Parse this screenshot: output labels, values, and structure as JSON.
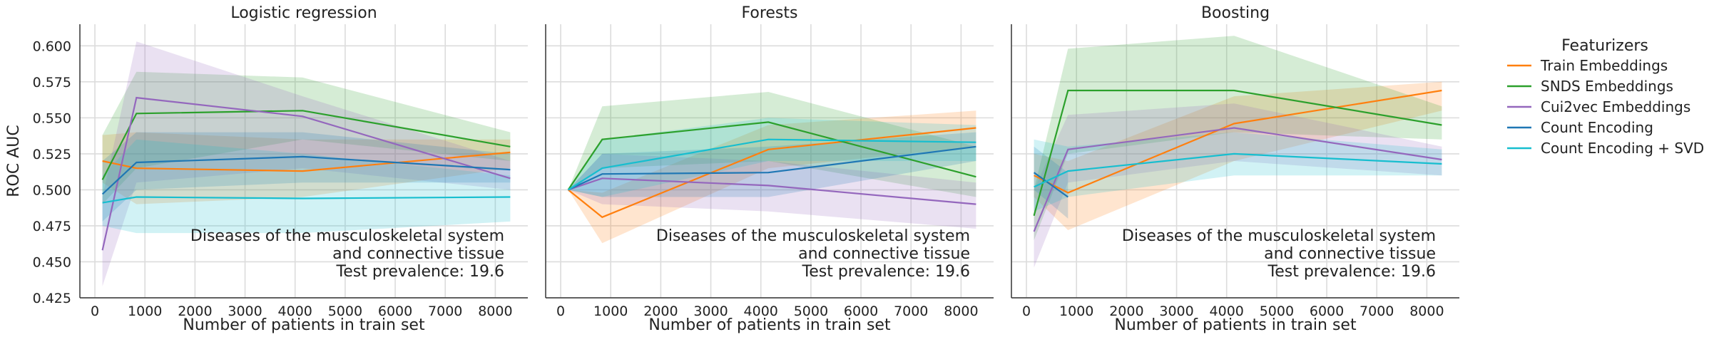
{
  "chart_data": {
    "type": "line",
    "ylabel": "ROC AUC",
    "xlabel": "Number of patients in train set",
    "xlim": [
      -300,
      8650
    ],
    "ylim": [
      0.425,
      0.615
    ],
    "xticks": [
      0,
      1000,
      2000,
      3000,
      4000,
      5000,
      6000,
      7000,
      8000
    ],
    "yticks": [
      0.425,
      0.45,
      0.475,
      0.5,
      0.525,
      0.55,
      0.575,
      0.6
    ],
    "ytick_labels": [
      "0.425",
      "0.450",
      "0.475",
      "0.500",
      "0.525",
      "0.550",
      "0.575",
      "0.600"
    ],
    "grid": true,
    "annotation": [
      "Diseases of the musculoskeletal system",
      "and connective tissue",
      "Test prevalence: 19.6"
    ],
    "legend": {
      "title": "Featurizers",
      "placement": "right",
      "entries": [
        "Train Embeddings",
        "SNDS Embeddings",
        "Cui2vec Embeddings",
        "Count Encoding",
        "Count Encoding + SVD"
      ]
    },
    "colors": {
      "Train Embeddings": "#ff7f0e",
      "SNDS Embeddings": "#2ca02c",
      "Cui2vec Embeddings": "#9467bd",
      "Count Encoding": "#1f77b4",
      "Count Encoding + SVD": "#17becf"
    },
    "panels": [
      {
        "title": "Logistic regression",
        "series": [
          {
            "name": "Train Embeddings",
            "x": [
              150,
              830,
              4150,
              8300
            ],
            "y": [
              0.52,
              0.515,
              0.513,
              0.526
            ],
            "lo": [
              0.505,
              0.49,
              0.495,
              0.515
            ],
            "hi": [
              0.538,
              0.54,
              0.535,
              0.535
            ]
          },
          {
            "name": "SNDS Embeddings",
            "x": [
              150,
              830,
              4150,
              8300
            ],
            "y": [
              0.507,
              0.553,
              0.555,
              0.53
            ],
            "lo": [
              0.49,
              0.515,
              0.535,
              0.52
            ],
            "hi": [
              0.538,
              0.582,
              0.578,
              0.54
            ]
          },
          {
            "name": "Cui2vec Embeddings",
            "x": [
              150,
              830,
              4150,
              8300
            ],
            "y": [
              0.458,
              0.564,
              0.551,
              0.508
            ],
            "lo": [
              0.433,
              0.505,
              0.515,
              0.5
            ],
            "hi": [
              0.495,
              0.603,
              0.565,
              0.52
            ]
          },
          {
            "name": "Count Encoding",
            "x": [
              150,
              830,
              4150,
              8300
            ],
            "y": [
              0.497,
              0.519,
              0.523,
              0.514
            ],
            "lo": [
              0.478,
              0.5,
              0.505,
              0.505
            ],
            "hi": [
              0.52,
              0.54,
              0.54,
              0.525
            ]
          },
          {
            "name": "Count Encoding + SVD",
            "x": [
              150,
              830,
              4150,
              8300
            ],
            "y": [
              0.491,
              0.495,
              0.494,
              0.495
            ],
            "lo": [
              0.475,
              0.47,
              0.47,
              0.478
            ],
            "hi": [
              0.51,
              0.535,
              0.525,
              0.51
            ]
          }
        ]
      },
      {
        "title": "Forests",
        "series": [
          {
            "name": "Train Embeddings",
            "x": [
              150,
              830,
              4150,
              8300
            ],
            "y": [
              0.5,
              0.481,
              0.528,
              0.543
            ],
            "lo": [
              0.5,
              0.463,
              0.515,
              0.53
            ],
            "hi": [
              0.5,
              0.498,
              0.545,
              0.555
            ]
          },
          {
            "name": "SNDS Embeddings",
            "x": [
              150,
              830,
              4150,
              8300
            ],
            "y": [
              0.5,
              0.535,
              0.547,
              0.509
            ],
            "lo": [
              0.5,
              0.515,
              0.52,
              0.495
            ],
            "hi": [
              0.5,
              0.558,
              0.568,
              0.53
            ]
          },
          {
            "name": "Cui2vec Embeddings",
            "x": [
              150,
              830,
              4150,
              8300
            ],
            "y": [
              0.5,
              0.508,
              0.503,
              0.49
            ],
            "lo": [
              0.5,
              0.49,
              0.485,
              0.473
            ],
            "hi": [
              0.5,
              0.525,
              0.52,
              0.505
            ]
          },
          {
            "name": "Count Encoding",
            "x": [
              150,
              830,
              4150,
              8300
            ],
            "y": [
              0.5,
              0.511,
              0.512,
              0.53
            ],
            "lo": [
              0.5,
              0.495,
              0.495,
              0.52
            ],
            "hi": [
              0.5,
              0.525,
              0.53,
              0.54
            ]
          },
          {
            "name": "Count Encoding + SVD",
            "x": [
              150,
              830,
              4150,
              8300
            ],
            "y": [
              0.5,
              0.515,
              0.535,
              0.533
            ],
            "lo": [
              0.5,
              0.495,
              0.52,
              0.52
            ],
            "hi": [
              0.5,
              0.535,
              0.55,
              0.545
            ]
          }
        ]
      },
      {
        "title": "Boosting",
        "series": [
          {
            "name": "Train Embeddings",
            "x": [
              150,
              830,
              4150,
              8300
            ],
            "y": [
              0.51,
              0.498,
              0.546,
              0.569
            ],
            "lo": [
              0.495,
              0.472,
              0.52,
              0.555
            ],
            "hi": [
              0.525,
              0.52,
              0.565,
              0.575
            ]
          },
          {
            "name": "SNDS Embeddings",
            "x": [
              150,
              830,
              4150,
              8300
            ],
            "y": [
              0.482,
              0.569,
              0.569,
              0.545
            ],
            "lo": [
              0.465,
              0.525,
              0.54,
              0.535
            ],
            "hi": [
              0.5,
              0.598,
              0.607,
              0.558
            ]
          },
          {
            "name": "Cui2vec Embeddings",
            "x": [
              150,
              830,
              4150,
              8300
            ],
            "y": [
              0.471,
              0.528,
              0.543,
              0.521
            ],
            "lo": [
              0.446,
              0.505,
              0.52,
              0.51
            ],
            "hi": [
              0.5,
              0.552,
              0.56,
              0.53
            ]
          },
          {
            "name": "Count Encoding",
            "x": [
              150,
              830
            ],
            "y": [
              0.512,
              0.495
            ],
            "lo": [
              0.5,
              0.48
            ],
            "hi": [
              0.53,
              0.512
            ]
          },
          {
            "name": "Count Encoding + SVD",
            "x": [
              150,
              830,
              4150,
              8300
            ],
            "y": [
              0.502,
              0.513,
              0.525,
              0.518
            ],
            "lo": [
              0.485,
              0.495,
              0.51,
              0.51
            ],
            "hi": [
              0.535,
              0.53,
              0.54,
              0.528
            ]
          }
        ]
      }
    ]
  }
}
